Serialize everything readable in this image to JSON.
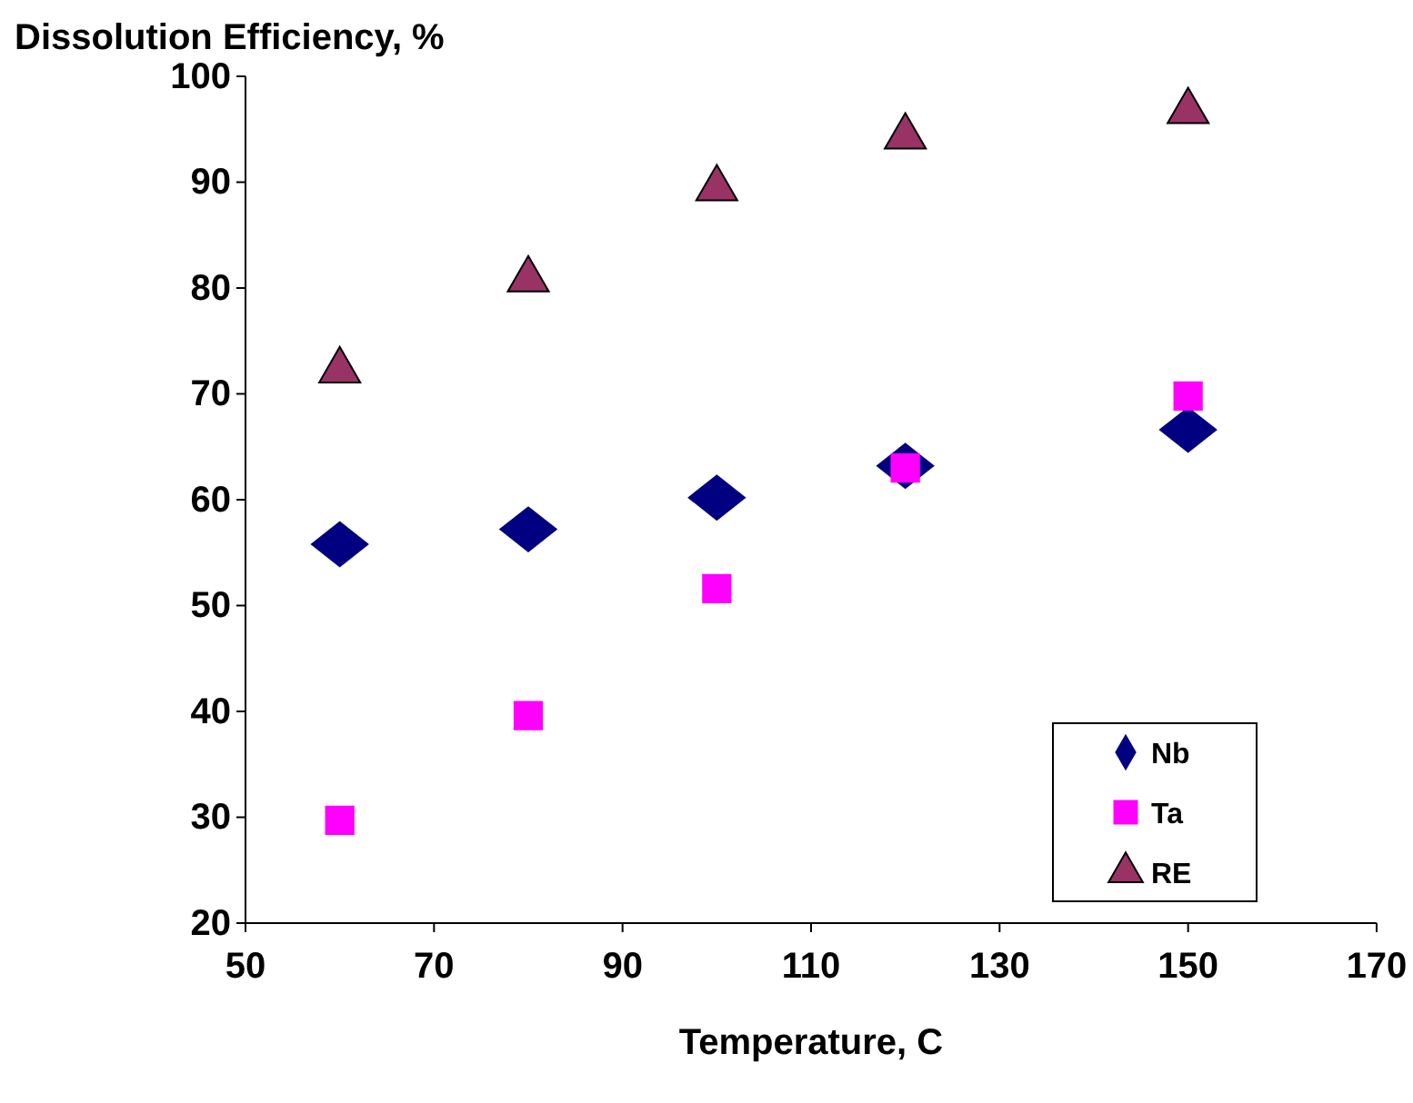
{
  "chart_data": {
    "type": "scatter",
    "xlabel": "Temperature, C",
    "ylabel": "Dissolution Efficiency, %",
    "xlim": [
      50,
      170
    ],
    "xticks": [
      50,
      70,
      90,
      110,
      130,
      150,
      170
    ],
    "ylim": [
      20,
      100
    ],
    "yticks": [
      20,
      30,
      40,
      50,
      60,
      70,
      80,
      90,
      100
    ],
    "grid": false,
    "legend": "bottom right",
    "series": [
      {
        "name": "Nb",
        "color": "#000080",
        "marker": "diamond",
        "x": [
          60,
          80,
          100,
          120,
          150
        ],
        "values": [
          55.8,
          57.2,
          60.2,
          63.2,
          66.6
        ]
      },
      {
        "name": "Ta",
        "color": "#ff00ff",
        "marker": "square",
        "x": [
          60,
          80,
          100,
          120,
          150
        ],
        "values": [
          29.7,
          39.6,
          51.6,
          63.0,
          69.8
        ]
      },
      {
        "name": "RE",
        "color": "#993366",
        "marker": "triangle",
        "x": [
          60,
          80,
          100,
          120,
          150
        ],
        "values": [
          72.2,
          80.8,
          89.4,
          94.3,
          96.7
        ]
      }
    ]
  }
}
